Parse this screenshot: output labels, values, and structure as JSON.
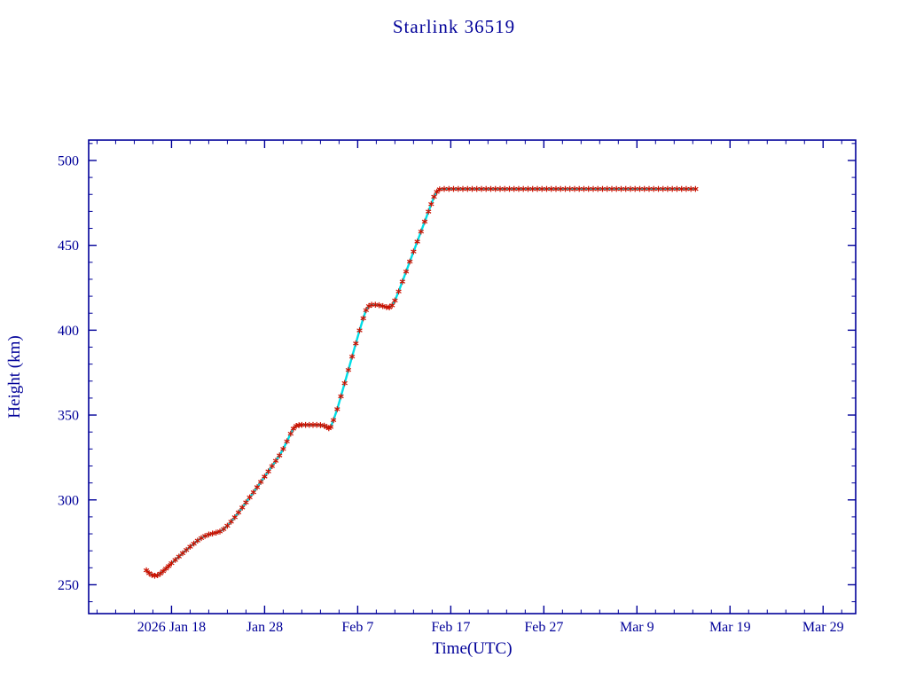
{
  "page": {
    "background": "#ffffff"
  },
  "chart_data": {
    "type": "line",
    "title": "Starlink 36519",
    "xlabel": "Time(UTC)",
    "ylabel": "Height (km)",
    "x_unit": "day-of-year 2026 (Jan 1 = 1)",
    "xlim": [
      9.1,
      91.5
    ],
    "ylim": [
      233,
      512
    ],
    "grid": false,
    "legend": "none",
    "axis_color": "#000099",
    "text_color": "#000099",
    "line_color": "#00dde6",
    "marker_color": "#cc1100",
    "marker_style": "asterisk",
    "x_major_ticks": [
      {
        "day": 18,
        "label": "2026 Jan 18"
      },
      {
        "day": 28,
        "label": "Jan 28"
      },
      {
        "day": 38,
        "label": "Feb 7"
      },
      {
        "day": 48,
        "label": "Feb 17"
      },
      {
        "day": 58,
        "label": "Feb 27"
      },
      {
        "day": 68,
        "label": "Mar 9"
      },
      {
        "day": 78,
        "label": "Mar 19"
      },
      {
        "day": 88,
        "label": "Mar 29"
      }
    ],
    "x_minor_ticks": {
      "from": 10,
      "to": 90,
      "step": 2
    },
    "y_major_ticks": [
      250,
      300,
      350,
      400,
      450,
      500
    ],
    "y_minor_ticks": {
      "from": 240,
      "to": 510,
      "step": 10
    },
    "series": [
      {
        "name": "height-km",
        "points": [
          [
            15.3,
            258.5
          ],
          [
            15.6,
            256.8
          ],
          [
            15.9,
            255.8
          ],
          [
            16.2,
            255.3
          ],
          [
            16.5,
            255.6
          ],
          [
            16.8,
            256.6
          ],
          [
            17.1,
            258.0
          ],
          [
            17.4,
            259.5
          ],
          [
            17.7,
            261.0
          ],
          [
            18.0,
            262.7
          ],
          [
            18.4,
            264.6
          ],
          [
            18.8,
            266.6
          ],
          [
            19.2,
            268.6
          ],
          [
            19.6,
            270.5
          ],
          [
            20.0,
            272.4
          ],
          [
            20.4,
            274.2
          ],
          [
            20.8,
            276.0
          ],
          [
            21.2,
            277.5
          ],
          [
            21.6,
            278.7
          ],
          [
            22.0,
            279.6
          ],
          [
            22.4,
            280.2
          ],
          [
            22.8,
            280.7
          ],
          [
            23.2,
            281.4
          ],
          [
            23.6,
            282.8
          ],
          [
            24.0,
            284.8
          ],
          [
            24.4,
            287.2
          ],
          [
            24.8,
            289.8
          ],
          [
            25.2,
            292.6
          ],
          [
            25.6,
            295.5
          ],
          [
            26.0,
            298.5
          ],
          [
            26.4,
            301.5
          ],
          [
            26.8,
            304.5
          ],
          [
            27.2,
            307.5
          ],
          [
            27.6,
            310.6
          ],
          [
            28.0,
            313.7
          ],
          [
            28.4,
            316.8
          ],
          [
            28.8,
            319.9
          ],
          [
            29.2,
            323.0
          ],
          [
            29.6,
            326.2
          ],
          [
            30.0,
            330.0
          ],
          [
            30.4,
            334.5
          ],
          [
            30.8,
            339.0
          ],
          [
            31.1,
            342.0
          ],
          [
            31.4,
            343.6
          ],
          [
            31.7,
            344.1
          ],
          [
            32.0,
            344.2
          ],
          [
            32.4,
            344.2
          ],
          [
            32.8,
            344.2
          ],
          [
            33.2,
            344.2
          ],
          [
            33.6,
            344.2
          ],
          [
            34.0,
            344.1
          ],
          [
            34.4,
            343.7
          ],
          [
            34.7,
            342.9
          ],
          [
            34.9,
            342.2
          ],
          [
            35.1,
            343.0
          ],
          [
            35.4,
            347.0
          ],
          [
            35.8,
            353.5
          ],
          [
            36.2,
            361.0
          ],
          [
            36.6,
            368.8
          ],
          [
            37.0,
            376.6
          ],
          [
            37.4,
            384.4
          ],
          [
            37.8,
            392.2
          ],
          [
            38.2,
            399.9
          ],
          [
            38.6,
            407.0
          ],
          [
            38.9,
            411.8
          ],
          [
            39.2,
            414.2
          ],
          [
            39.5,
            415.0
          ],
          [
            39.9,
            415.0
          ],
          [
            40.3,
            414.7
          ],
          [
            40.7,
            414.2
          ],
          [
            41.1,
            413.6
          ],
          [
            41.4,
            413.4
          ],
          [
            41.7,
            414.6
          ],
          [
            42.0,
            417.5
          ],
          [
            42.4,
            422.8
          ],
          [
            42.8,
            428.6
          ],
          [
            43.2,
            434.5
          ],
          [
            43.6,
            440.4
          ],
          [
            44.0,
            446.3
          ],
          [
            44.4,
            452.2
          ],
          [
            44.8,
            458.1
          ],
          [
            45.2,
            464.0
          ],
          [
            45.6,
            469.9
          ],
          [
            45.9,
            474.3
          ],
          [
            46.2,
            478.6
          ],
          [
            46.5,
            481.5
          ],
          [
            46.8,
            483.0
          ],
          [
            47.3,
            483.2
          ],
          [
            47.8,
            483.2
          ],
          [
            48.3,
            483.2
          ],
          [
            48.8,
            483.2
          ],
          [
            49.3,
            483.2
          ],
          [
            49.8,
            483.2
          ],
          [
            50.3,
            483.2
          ],
          [
            50.8,
            483.2
          ],
          [
            51.3,
            483.2
          ],
          [
            51.8,
            483.2
          ],
          [
            52.3,
            483.2
          ],
          [
            52.8,
            483.2
          ],
          [
            53.3,
            483.2
          ],
          [
            53.8,
            483.2
          ],
          [
            54.3,
            483.2
          ],
          [
            54.8,
            483.2
          ],
          [
            55.3,
            483.2
          ],
          [
            55.8,
            483.2
          ],
          [
            56.3,
            483.2
          ],
          [
            56.8,
            483.2
          ],
          [
            57.3,
            483.2
          ],
          [
            57.8,
            483.2
          ],
          [
            58.3,
            483.2
          ],
          [
            58.8,
            483.2
          ],
          [
            59.3,
            483.2
          ],
          [
            59.8,
            483.2
          ],
          [
            60.3,
            483.2
          ],
          [
            60.8,
            483.2
          ],
          [
            61.3,
            483.2
          ],
          [
            61.8,
            483.2
          ],
          [
            62.3,
            483.2
          ],
          [
            62.8,
            483.2
          ],
          [
            63.3,
            483.2
          ],
          [
            63.8,
            483.2
          ],
          [
            64.3,
            483.2
          ],
          [
            64.8,
            483.2
          ],
          [
            65.3,
            483.2
          ],
          [
            65.8,
            483.2
          ],
          [
            66.3,
            483.2
          ],
          [
            66.8,
            483.2
          ],
          [
            67.3,
            483.2
          ],
          [
            67.8,
            483.2
          ],
          [
            68.3,
            483.2
          ],
          [
            68.8,
            483.2
          ],
          [
            69.3,
            483.2
          ],
          [
            69.8,
            483.2
          ],
          [
            70.3,
            483.2
          ],
          [
            70.8,
            483.2
          ],
          [
            71.3,
            483.2
          ],
          [
            71.8,
            483.2
          ],
          [
            72.3,
            483.2
          ],
          [
            72.8,
            483.2
          ],
          [
            73.3,
            483.2
          ],
          [
            73.8,
            483.2
          ],
          [
            74.3,
            483.2
          ]
        ]
      }
    ]
  }
}
